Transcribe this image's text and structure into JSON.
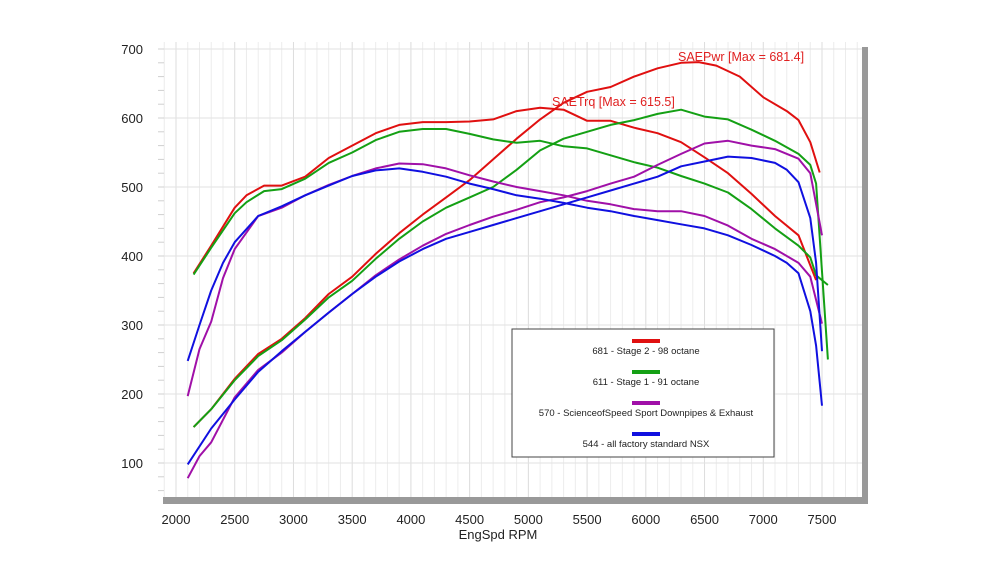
{
  "chart_data": {
    "type": "line",
    "title": "",
    "xlabel": "EngSpd RPM",
    "ylabel": "",
    "xlim": [
      1850,
      7900
    ],
    "ylim": [
      40,
      710
    ],
    "xticks": [
      2000,
      2500,
      3000,
      3500,
      4000,
      4500,
      5000,
      5500,
      6000,
      6500,
      7000,
      7500
    ],
    "yticks": [
      100,
      200,
      300,
      400,
      500,
      600,
      700
    ],
    "grid": true,
    "annotations": [
      {
        "text": "SAEPwr [Max = 681.4]",
        "x": 6300,
        "y": 685,
        "color": "#e02020"
      },
      {
        "text": "SAETrq [Max = 615.5]",
        "x": 5100,
        "y": 620,
        "color": "#e02020"
      }
    ],
    "legend": {
      "placement": "lower-center",
      "entries": [
        {
          "label": "681 - Stage 2 - 98 octane",
          "color": "#e01010"
        },
        {
          "label": "611 - Stage 1 - 91 octane",
          "color": "#14a014"
        },
        {
          "label": "570 - ScienceofSpeed Sport Downpipes & Exhaust",
          "color": "#a010a8"
        },
        {
          "label": "544 - all factory standard NSX",
          "color": "#1010e0"
        }
      ]
    },
    "series": [
      {
        "name": "Stage 2 - 98 octane SAETrq",
        "color": "#e01010",
        "x": [
          2150,
          2300,
          2500,
          2600,
          2750,
          2900,
          3100,
          3300,
          3500,
          3700,
          3900,
          4100,
          4300,
          4500,
          4700,
          4900,
          5100,
          5300,
          5500,
          5700,
          5900,
          6100,
          6300,
          6500,
          6700,
          6900,
          7100,
          7300,
          7450
        ],
        "y": [
          375,
          415,
          470,
          488,
          502,
          502,
          515,
          542,
          560,
          578,
          590,
          594,
          594,
          595,
          598,
          610,
          615,
          612,
          596,
          596,
          586,
          578,
          565,
          543,
          520,
          490,
          458,
          430,
          365
        ]
      },
      {
        "name": "Stage 2 - 98 octane SAEPwr",
        "color": "#e01010",
        "x": [
          2150,
          2300,
          2500,
          2700,
          2900,
          3100,
          3300,
          3500,
          3700,
          3900,
          4100,
          4300,
          4500,
          4700,
          4900,
          5100,
          5300,
          5500,
          5700,
          5900,
          6100,
          6300,
          6450,
          6600,
          6800,
          7000,
          7200,
          7300,
          7400,
          7480
        ],
        "y": [
          152,
          178,
          222,
          258,
          280,
          310,
          345,
          370,
          403,
          433,
          460,
          485,
          510,
          540,
          570,
          598,
          622,
          638,
          645,
          660,
          672,
          680,
          681,
          676,
          660,
          630,
          610,
          597,
          565,
          521
        ]
      },
      {
        "name": "Stage 1 - 91 octane SAETrq",
        "color": "#14a014",
        "x": [
          2150,
          2300,
          2500,
          2600,
          2750,
          2900,
          3100,
          3300,
          3500,
          3700,
          3900,
          4100,
          4300,
          4500,
          4700,
          4900,
          5100,
          5300,
          5500,
          5700,
          5900,
          6100,
          6300,
          6500,
          6700,
          6900,
          7100,
          7300,
          7400,
          7450,
          7550
        ],
        "y": [
          373,
          412,
          462,
          478,
          494,
          497,
          512,
          535,
          550,
          568,
          580,
          584,
          584,
          577,
          569,
          564,
          567,
          559,
          556,
          546,
          536,
          528,
          516,
          505,
          492,
          468,
          440,
          415,
          398,
          372,
          358
        ]
      },
      {
        "name": "Stage 1 - 91 octane SAEPwr",
        "color": "#14a014",
        "x": [
          2150,
          2300,
          2500,
          2700,
          2900,
          3100,
          3300,
          3500,
          3700,
          3900,
          4100,
          4300,
          4500,
          4700,
          4900,
          5100,
          5300,
          5500,
          5700,
          5900,
          6100,
          6300,
          6500,
          6700,
          6900,
          7100,
          7300,
          7400,
          7450,
          7550
        ],
        "y": [
          152,
          178,
          220,
          255,
          278,
          308,
          340,
          364,
          396,
          425,
          450,
          470,
          485,
          500,
          525,
          553,
          570,
          580,
          590,
          597,
          606,
          612,
          602,
          598,
          583,
          567,
          548,
          532,
          505,
          250
        ]
      },
      {
        "name": "ScienceofSpeed SAETrq",
        "color": "#a010a8",
        "x": [
          2100,
          2200,
          2300,
          2400,
          2500,
          2700,
          2900,
          3100,
          3300,
          3500,
          3700,
          3900,
          4100,
          4300,
          4500,
          4700,
          4900,
          5100,
          5300,
          5500,
          5700,
          5900,
          6100,
          6300,
          6500,
          6700,
          6900,
          7100,
          7300,
          7400,
          7500
        ],
        "y": [
          197,
          265,
          305,
          368,
          410,
          458,
          470,
          488,
          503,
          516,
          527,
          534,
          533,
          527,
          517,
          508,
          500,
          494,
          488,
          480,
          475,
          468,
          465,
          465,
          458,
          444,
          425,
          410,
          390,
          370,
          302
        ]
      },
      {
        "name": "ScienceofSpeed SAEPwr",
        "color": "#a010a8",
        "x": [
          2100,
          2200,
          2300,
          2500,
          2700,
          2900,
          3100,
          3300,
          3500,
          3700,
          3900,
          4100,
          4300,
          4500,
          4700,
          4900,
          5100,
          5300,
          5500,
          5700,
          5900,
          6100,
          6300,
          6500,
          6700,
          6900,
          7100,
          7300,
          7400,
          7500
        ],
        "y": [
          78,
          110,
          130,
          195,
          235,
          260,
          290,
          318,
          345,
          372,
          395,
          415,
          432,
          445,
          457,
          467,
          478,
          485,
          494,
          505,
          515,
          532,
          548,
          563,
          567,
          560,
          555,
          541,
          520,
          430
        ]
      },
      {
        "name": "Factory NSX SAETrq",
        "color": "#1010e0",
        "x": [
          2100,
          2200,
          2300,
          2400,
          2500,
          2700,
          2900,
          3100,
          3300,
          3500,
          3700,
          3900,
          4100,
          4300,
          4500,
          4700,
          4900,
          5100,
          5300,
          5500,
          5700,
          5900,
          6100,
          6300,
          6500,
          6700,
          6900,
          7100,
          7200,
          7300,
          7400,
          7450,
          7500
        ],
        "y": [
          248,
          300,
          350,
          390,
          420,
          458,
          472,
          488,
          502,
          516,
          524,
          527,
          522,
          515,
          505,
          497,
          488,
          483,
          477,
          470,
          465,
          458,
          452,
          446,
          440,
          430,
          416,
          400,
          390,
          375,
          320,
          270,
          183
        ]
      },
      {
        "name": "Factory NSX SAEPwr",
        "color": "#1010e0",
        "x": [
          2100,
          2300,
          2500,
          2700,
          2900,
          3100,
          3300,
          3500,
          3700,
          3900,
          4100,
          4300,
          4500,
          4700,
          4900,
          5100,
          5300,
          5500,
          5700,
          5900,
          6100,
          6300,
          6500,
          6700,
          6900,
          7100,
          7200,
          7300,
          7400,
          7450,
          7500
        ],
        "y": [
          98,
          150,
          192,
          232,
          262,
          290,
          318,
          345,
          370,
          392,
          410,
          425,
          435,
          445,
          455,
          465,
          475,
          485,
          495,
          505,
          515,
          530,
          537,
          544,
          542,
          535,
          525,
          507,
          455,
          390,
          262
        ]
      }
    ]
  }
}
